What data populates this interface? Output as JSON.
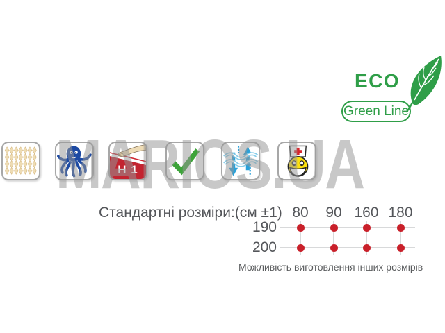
{
  "watermark": "MARIOS.UA",
  "eco_badge": {
    "title": "ECO",
    "subtitle": "Green Line",
    "green": "#2f9e48"
  },
  "feature_icons": [
    {
      "name": "pocket-springs"
    },
    {
      "name": "octopus"
    },
    {
      "name": "firmness-h1",
      "label": "H 1"
    },
    {
      "name": "checkmark"
    },
    {
      "name": "air-circulation"
    },
    {
      "name": "medical-smiley"
    }
  ],
  "sizes": {
    "title": "Стандартні розміри:(см ±1)",
    "columns": [
      "80",
      "90",
      "160",
      "180"
    ],
    "rows": [
      "190",
      "200"
    ],
    "availability": [
      [
        1,
        1,
        1,
        1
      ],
      [
        1,
        1,
        1,
        1
      ]
    ],
    "note": "Можливість виготовлення інших розмірів",
    "dot_color": "#c9202a",
    "grid_line_color": "#d8d9da"
  }
}
